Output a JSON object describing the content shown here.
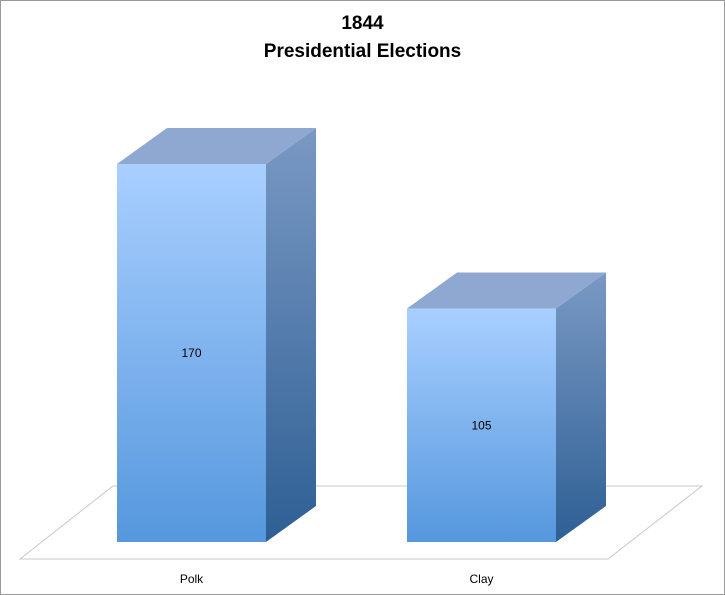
{
  "chart_data": {
    "type": "bar",
    "title": "1844",
    "subtitle": "Presidential Elections",
    "categories": [
      "Polk",
      "Clay"
    ],
    "values": [
      170,
      105
    ],
    "xlabel": "",
    "ylabel": "",
    "ylim": [
      0,
      170
    ],
    "grid": false,
    "legend": "none",
    "colors": {
      "front_top": "#A9CFFF",
      "front_bottom": "#5597DD",
      "side_top": "#7A99C4",
      "side_bottom": "#2E5F94",
      "top_face": "#8EA8D2",
      "floor_stroke": "#C8C8C8"
    }
  }
}
